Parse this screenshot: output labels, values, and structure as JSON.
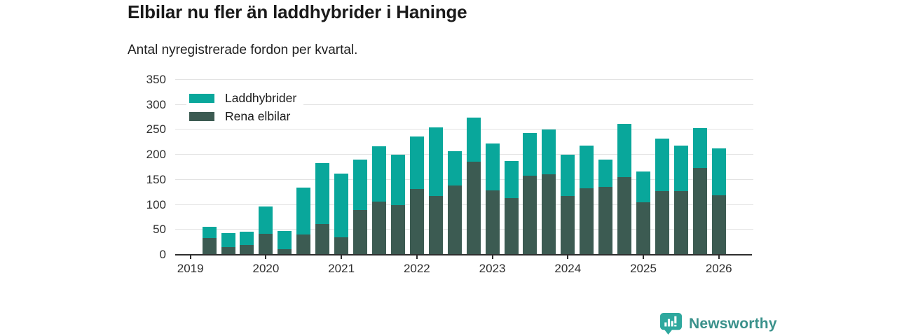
{
  "title": "Elbilar nu fler än laddhybrider i Haninge",
  "subtitle": "Antal nyregistrerade fordon per kvartal.",
  "brand": {
    "name": "Newsworthy",
    "icon": "bar-chart-speech-bubble",
    "icon_color": "#2ea89e",
    "text_color": "#3a918b"
  },
  "chart_data": {
    "type": "bar",
    "stacked": true,
    "title": "Elbilar nu fler än laddhybrider i Haninge",
    "subtitle": "Antal nyregistrerade fordon per kvartal.",
    "xlabel": "",
    "ylabel": "",
    "ylim": [
      0,
      350
    ],
    "yticks": [
      0,
      50,
      100,
      150,
      200,
      250,
      300,
      350
    ],
    "year_ticks": [
      "2019",
      "2020",
      "2021",
      "2022",
      "2023",
      "2024",
      "2025",
      "2026"
    ],
    "grid": true,
    "legend_position": "top-left",
    "categories": [
      "2019 Q2",
      "2019 Q3",
      "2019 Q4",
      "2020 Q1",
      "2020 Q2",
      "2020 Q3",
      "2020 Q4",
      "2021 Q1",
      "2021 Q2",
      "2021 Q3",
      "2021 Q4",
      "2022 Q1",
      "2022 Q2",
      "2022 Q3",
      "2022 Q4",
      "2023 Q1",
      "2023 Q2",
      "2023 Q3",
      "2023 Q4",
      "2024 Q1",
      "2024 Q2",
      "2024 Q3",
      "2024 Q4",
      "2025 Q1",
      "2025 Q2",
      "2025 Q3",
      "2025 Q4",
      "2026 Q1"
    ],
    "series": [
      {
        "name": "Laddhybrider",
        "color": "#09a79b",
        "stack_layer": "top",
        "values": [
          23,
          27,
          26,
          54,
          37,
          94,
          122,
          128,
          100,
          111,
          100,
          105,
          137,
          69,
          88,
          94,
          74,
          85,
          90,
          83,
          86,
          54,
          106,
          61,
          105,
          92,
          81,
          94
        ]
      },
      {
        "name": "Rena elbilar",
        "color": "#3c5b52",
        "stack_layer": "bottom",
        "values": [
          33,
          16,
          20,
          42,
          11,
          41,
          61,
          35,
          90,
          106,
          100,
          131,
          118,
          138,
          186,
          129,
          114,
          158,
          161,
          117,
          133,
          136,
          156,
          105,
          128,
          127,
          173,
          119
        ]
      }
    ],
    "totals": [
      56,
      43,
      46,
      96,
      48,
      135,
      183,
      163,
      190,
      217,
      200,
      236,
      255,
      207,
      274,
      223,
      188,
      243,
      251,
      200,
      219,
      190,
      262,
      166,
      233,
      219,
      254,
      213
    ]
  }
}
